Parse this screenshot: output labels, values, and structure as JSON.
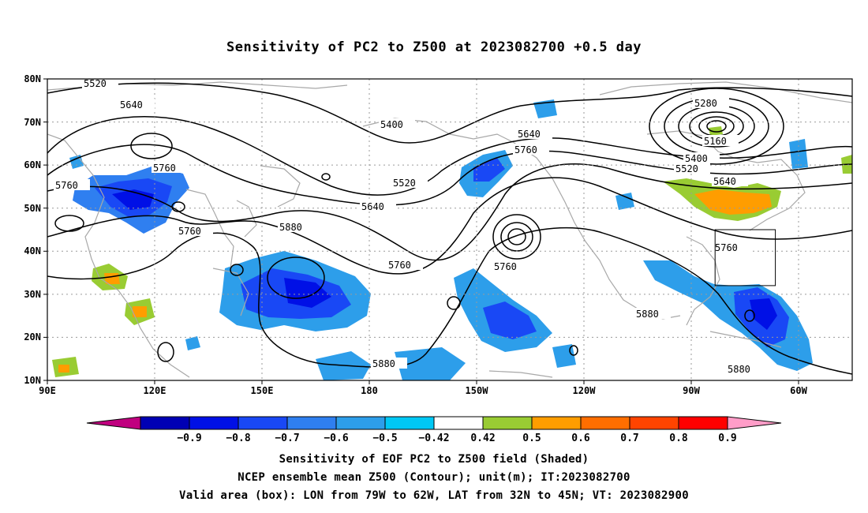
{
  "title": "Sensitivity of PC2 to Z500 at 2023082700 +0.5 day",
  "map": {
    "lon_range": [
      "90E",
      "45W"
    ],
    "lat_range": [
      "10N",
      "80N"
    ],
    "lat_ticks": [
      "80N",
      "70N",
      "60N",
      "50N",
      "40N",
      "30N",
      "20N",
      "10N"
    ],
    "lon_ticks": [
      "90E",
      "120E",
      "150E",
      "180",
      "150W",
      "120W",
      "90W",
      "60W"
    ],
    "colors": {
      "coast": "#a8a8a8",
      "contour": "#000000",
      "grid": "#9a9a9a"
    },
    "contour_labels": [
      "5520",
      "5640",
      "5400",
      "5640",
      "5760",
      "5280",
      "5160",
      "5400",
      "5520",
      "5640",
      "5760",
      "5760",
      "5520",
      "5640",
      "5880",
      "5760",
      "5760",
      "5760",
      "5880",
      "5880",
      "5880",
      "5760"
    ],
    "valid_box": {
      "lon_min": -79,
      "lon_max": -62,
      "lat_min": 32,
      "lat_max": 45
    }
  },
  "colorbar": {
    "colors": [
      "#c0007f",
      "#0000b4",
      "#0010e6",
      "#1948f5",
      "#2f7ff0",
      "#2d9eea",
      "#00c8f5",
      "#ffffff",
      "#99cc33",
      "#ff9d00",
      "#ff6e00",
      "#ff4400",
      "#ff0000",
      "#ff9dc8"
    ],
    "labels": [
      "−0.9",
      "−0.8",
      "−0.7",
      "−0.6",
      "−0.5",
      "−0.42",
      "0.42",
      "0.5",
      "0.6",
      "0.7",
      "0.8",
      "0.9"
    ]
  },
  "footer": {
    "line1": "Sensitivity of EOF PC2 to Z500 field (Shaded)",
    "line2": "NCEP ensemble mean Z500 (Contour); unit(m); IT:2023082700",
    "line3": "Valid area (box): LON from 79W to 62W, LAT from 32N to 45N; VT: 2023082900"
  }
}
